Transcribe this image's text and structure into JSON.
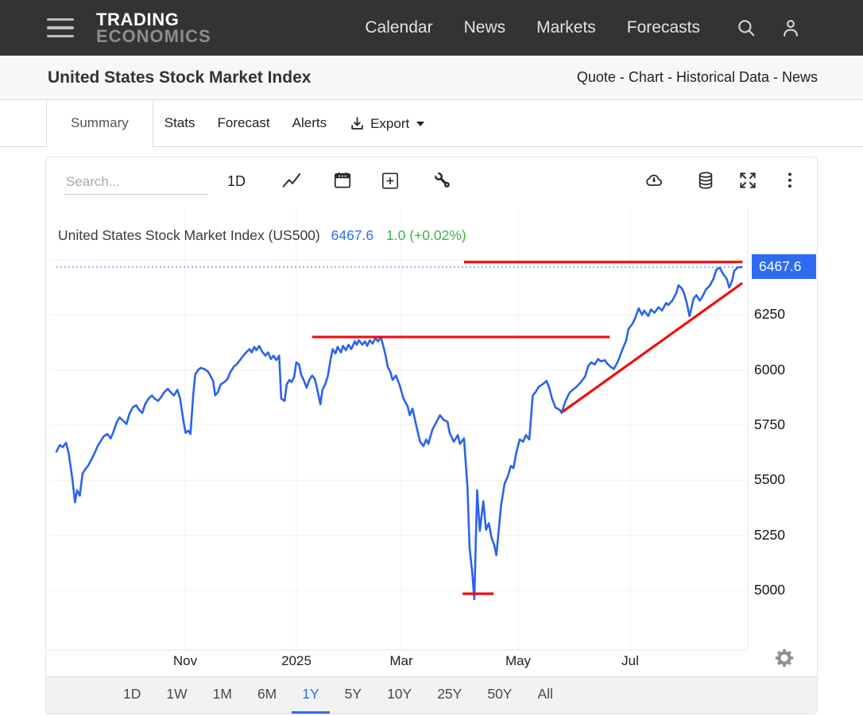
{
  "navbar": {
    "logo": {
      "line1": "TRADING",
      "line2": "ECONOMICS"
    },
    "links": [
      "Calendar",
      "News",
      "Markets",
      "Forecasts"
    ]
  },
  "subheader": {
    "title": "United States Stock Market Index",
    "links": [
      "Quote",
      "Chart",
      "Historical Data",
      "News"
    ],
    "separator": " - "
  },
  "tabs": {
    "items": [
      "Summary",
      "Stats",
      "Forecast",
      "Alerts"
    ],
    "active": "Summary",
    "export_label": "Export"
  },
  "toolbar": {
    "search_placeholder": "Search...",
    "interval": "1D",
    "left_icons": [
      "line-chart-icon",
      "calendar-icon",
      "add-indicator-icon",
      "tools-icon"
    ],
    "right_icons": [
      "download-chart-icon",
      "data-source-icon",
      "fullscreen-icon",
      "more-options-icon"
    ]
  },
  "price_badge": "6467.6",
  "ranges": {
    "items": [
      "1D",
      "1W",
      "1M",
      "6M",
      "1Y",
      "5Y",
      "10Y",
      "25Y",
      "50Y",
      "All"
    ],
    "active": "1Y"
  },
  "colors": {
    "line_blue": "#2c63ea",
    "badge_blue": "#2d6bf2",
    "price_blue": "#2e6ef2",
    "change_green": "#3bb54a",
    "annotation_red": "#f10d0d",
    "grid": "#f0f0f2",
    "axis_border": "#e4e4e6"
  },
  "chart_data": {
    "type": "line",
    "title": "United States Stock Market Index (US500)",
    "price": "6467.6",
    "change": "1.0 (+0.02%)",
    "last_value": 6467.6,
    "y_ticks": [
      6500,
      6250,
      6000,
      5750,
      5500,
      5250,
      5000
    ],
    "y_range": [
      4722,
      6734
    ],
    "x_ticks": [
      {
        "label": "Nov",
        "d": 0.187
      },
      {
        "label": "2025",
        "d": 0.349
      },
      {
        "label": "Mar",
        "d": 0.502
      },
      {
        "label": "May",
        "d": 0.672
      },
      {
        "label": "Jul",
        "d": 0.835
      }
    ],
    "grid": true,
    "legend_position": "none",
    "series": [
      {
        "name": "US500",
        "points": [
          [
            0,
            5630
          ],
          [
            0.005,
            5660
          ],
          [
            0.009,
            5650
          ],
          [
            0.014,
            5670
          ],
          [
            0.018,
            5620
          ],
          [
            0.023,
            5510
          ],
          [
            0.027,
            5400
          ],
          [
            0.03,
            5455
          ],
          [
            0.034,
            5430
          ],
          [
            0.038,
            5530
          ],
          [
            0.043,
            5555
          ],
          [
            0.046,
            5565
          ],
          [
            0.051,
            5595
          ],
          [
            0.055,
            5620
          ],
          [
            0.06,
            5655
          ],
          [
            0.065,
            5680
          ],
          [
            0.069,
            5700
          ],
          [
            0.074,
            5710
          ],
          [
            0.079,
            5690
          ],
          [
            0.083,
            5720
          ],
          [
            0.088,
            5765
          ],
          [
            0.092,
            5785
          ],
          [
            0.097,
            5770
          ],
          [
            0.102,
            5755
          ],
          [
            0.106,
            5800
          ],
          [
            0.111,
            5830
          ],
          [
            0.116,
            5840
          ],
          [
            0.12,
            5820
          ],
          [
            0.125,
            5805
          ],
          [
            0.129,
            5845
          ],
          [
            0.134,
            5870
          ],
          [
            0.139,
            5885
          ],
          [
            0.143,
            5870
          ],
          [
            0.148,
            5860
          ],
          [
            0.153,
            5880
          ],
          [
            0.157,
            5900
          ],
          [
            0.162,
            5915
          ],
          [
            0.166,
            5900
          ],
          [
            0.171,
            5885
          ],
          [
            0.176,
            5910
          ],
          [
            0.18,
            5870
          ],
          [
            0.185,
            5765
          ],
          [
            0.188,
            5715
          ],
          [
            0.192,
            5725
          ],
          [
            0.195,
            5710
          ],
          [
            0.199,
            5885
          ],
          [
            0.202,
            5980
          ],
          [
            0.206,
            6000
          ],
          [
            0.21,
            6010
          ],
          [
            0.215,
            6005
          ],
          [
            0.22,
            5995
          ],
          [
            0.223,
            5980
          ],
          [
            0.228,
            5950
          ],
          [
            0.231,
            5885
          ],
          [
            0.235,
            5900
          ],
          [
            0.239,
            5935
          ],
          [
            0.244,
            5945
          ],
          [
            0.249,
            5960
          ],
          [
            0.253,
            5990
          ],
          [
            0.258,
            6015
          ],
          [
            0.262,
            6025
          ],
          [
            0.267,
            6045
          ],
          [
            0.272,
            6065
          ],
          [
            0.276,
            6080
          ],
          [
            0.281,
            6095
          ],
          [
            0.284,
            6080
          ],
          [
            0.288,
            6105
          ],
          [
            0.291,
            6090
          ],
          [
            0.295,
            6110
          ],
          [
            0.299,
            6085
          ],
          [
            0.304,
            6065
          ],
          [
            0.308,
            6080
          ],
          [
            0.312,
            6050
          ],
          [
            0.316,
            6065
          ],
          [
            0.32,
            6045
          ],
          [
            0.324,
            6065
          ],
          [
            0.327,
            5870
          ],
          [
            0.332,
            5860
          ],
          [
            0.335,
            5935
          ],
          [
            0.339,
            5955
          ],
          [
            0.342,
            5945
          ],
          [
            0.346,
            5970
          ],
          [
            0.349,
            6035
          ],
          [
            0.353,
            6025
          ],
          [
            0.356,
            5980
          ],
          [
            0.361,
            5945
          ],
          [
            0.364,
            5920
          ],
          [
            0.368,
            5955
          ],
          [
            0.372,
            5975
          ],
          [
            0.376,
            5960
          ],
          [
            0.379,
            5920
          ],
          [
            0.384,
            5845
          ],
          [
            0.387,
            5910
          ],
          [
            0.391,
            5935
          ],
          [
            0.395,
            5975
          ],
          [
            0.399,
            6050
          ],
          [
            0.402,
            6095
          ],
          [
            0.406,
            6075
          ],
          [
            0.409,
            6105
          ],
          [
            0.414,
            6080
          ],
          [
            0.417,
            6110
          ],
          [
            0.421,
            6090
          ],
          [
            0.425,
            6115
          ],
          [
            0.429,
            6095
          ],
          [
            0.434,
            6130
          ],
          [
            0.437,
            6115
          ],
          [
            0.44,
            6135
          ],
          [
            0.445,
            6115
          ],
          [
            0.449,
            6130
          ],
          [
            0.452,
            6110
          ],
          [
            0.456,
            6135
          ],
          [
            0.46,
            6120
          ],
          [
            0.464,
            6145
          ],
          [
            0.468,
            6130
          ],
          [
            0.472,
            6150
          ],
          [
            0.475,
            6115
          ],
          [
            0.479,
            6065
          ],
          [
            0.482,
            6015
          ],
          [
            0.486,
            5990
          ],
          [
            0.489,
            5955
          ],
          [
            0.494,
            5975
          ],
          [
            0.499,
            5935
          ],
          [
            0.505,
            5870
          ],
          [
            0.511,
            5835
          ],
          [
            0.514,
            5795
          ],
          [
            0.518,
            5825
          ],
          [
            0.523,
            5755
          ],
          [
            0.526,
            5715
          ],
          [
            0.529,
            5675
          ],
          [
            0.534,
            5655
          ],
          [
            0.538,
            5685
          ],
          [
            0.541,
            5665
          ],
          [
            0.547,
            5730
          ],
          [
            0.553,
            5765
          ],
          [
            0.558,
            5795
          ],
          [
            0.563,
            5775
          ],
          [
            0.569,
            5765
          ],
          [
            0.572,
            5715
          ],
          [
            0.578,
            5675
          ],
          [
            0.584,
            5705
          ],
          [
            0.587,
            5665
          ],
          [
            0.593,
            5690
          ],
          [
            0.598,
            5465
          ],
          [
            0.601,
            5195
          ],
          [
            0.605,
            5080
          ],
          [
            0.608,
            4960
          ],
          [
            0.612,
            5455
          ],
          [
            0.616,
            5270
          ],
          [
            0.621,
            5405
          ],
          [
            0.625,
            5275
          ],
          [
            0.629,
            5305
          ],
          [
            0.633,
            5240
          ],
          [
            0.637,
            5205
          ],
          [
            0.64,
            5160
          ],
          [
            0.647,
            5390
          ],
          [
            0.652,
            5485
          ],
          [
            0.657,
            5520
          ],
          [
            0.661,
            5565
          ],
          [
            0.665,
            5555
          ],
          [
            0.669,
            5625
          ],
          [
            0.674,
            5685
          ],
          [
            0.679,
            5675
          ],
          [
            0.683,
            5705
          ],
          [
            0.688,
            5685
          ],
          [
            0.693,
            5885
          ],
          [
            0.697,
            5900
          ],
          [
            0.702,
            5925
          ],
          [
            0.707,
            5935
          ],
          [
            0.713,
            5950
          ],
          [
            0.717,
            5920
          ],
          [
            0.721,
            5870
          ],
          [
            0.726,
            5830
          ],
          [
            0.732,
            5820
          ],
          [
            0.735,
            5805
          ],
          [
            0.74,
            5855
          ],
          [
            0.746,
            5895
          ],
          [
            0.751,
            5910
          ],
          [
            0.757,
            5925
          ],
          [
            0.763,
            5945
          ],
          [
            0.769,
            5970
          ],
          [
            0.774,
            6020
          ],
          [
            0.778,
            6035
          ],
          [
            0.783,
            6025
          ],
          [
            0.788,
            6050
          ],
          [
            0.792,
            6040
          ],
          [
            0.798,
            6045
          ],
          [
            0.801,
            6030
          ],
          [
            0.806,
            6015
          ],
          [
            0.811,
            6005
          ],
          [
            0.817,
            6040
          ],
          [
            0.823,
            6090
          ],
          [
            0.829,
            6135
          ],
          [
            0.832,
            6185
          ],
          [
            0.838,
            6210
          ],
          [
            0.842,
            6235
          ],
          [
            0.847,
            6280
          ],
          [
            0.852,
            6250
          ],
          [
            0.855,
            6270
          ],
          [
            0.861,
            6245
          ],
          [
            0.865,
            6275
          ],
          [
            0.87,
            6260
          ],
          [
            0.876,
            6285
          ],
          [
            0.881,
            6270
          ],
          [
            0.887,
            6305
          ],
          [
            0.89,
            6295
          ],
          [
            0.896,
            6315
          ],
          [
            0.902,
            6350
          ],
          [
            0.905,
            6385
          ],
          [
            0.91,
            6370
          ],
          [
            0.913,
            6350
          ],
          [
            0.917,
            6305
          ],
          [
            0.921,
            6245
          ],
          [
            0.927,
            6325
          ],
          [
            0.931,
            6340
          ],
          [
            0.936,
            6315
          ],
          [
            0.94,
            6335
          ],
          [
            0.945,
            6365
          ],
          [
            0.951,
            6385
          ],
          [
            0.956,
            6415
          ],
          [
            0.96,
            6455
          ],
          [
            0.965,
            6465
          ],
          [
            0.969,
            6440
          ],
          [
            0.975,
            6415
          ],
          [
            0.979,
            6375
          ],
          [
            0.983,
            6405
          ],
          [
            0.986,
            6450
          ],
          [
            0.991,
            6465
          ],
          [
            0.997,
            6467.6
          ]
        ]
      }
    ],
    "annotations": [
      {
        "type": "hline",
        "value": 6490,
        "d1": 0.593,
        "d2": 0.998
      },
      {
        "type": "hline",
        "value": 6150,
        "d1": 0.372,
        "d2": 0.805
      },
      {
        "type": "trendline",
        "d1": 0.736,
        "v1": 5810,
        "d2": 0.998,
        "v2": 6395
      },
      {
        "type": "hline",
        "value": 4985,
        "d1": 0.591,
        "d2": 0.636
      }
    ],
    "current_price_line": {
      "value": 6467.6,
      "style": "dotted"
    }
  }
}
